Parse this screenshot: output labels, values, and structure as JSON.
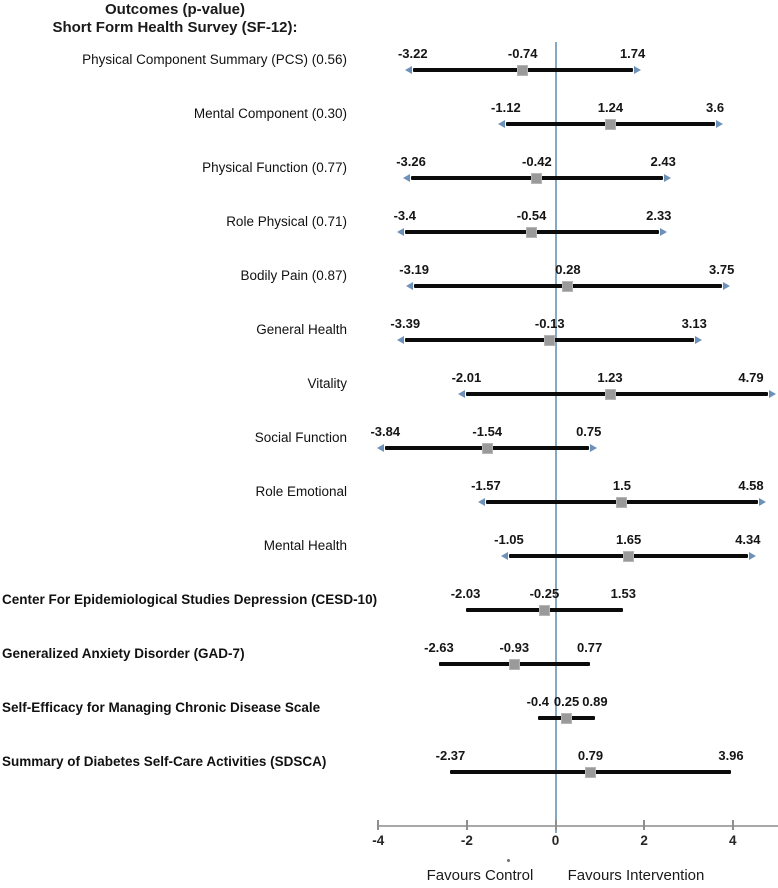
{
  "title": {
    "line1": "Outcomes (p-value)",
    "line2": "Short Form Health Survey (SF-12):"
  },
  "chart_data": {
    "type": "scatter",
    "subtype": "forest-plot-with-error-bars",
    "title": "Outcomes (p-value)",
    "subtitle": "Short Form Health Survey (SF-12):",
    "xlim": [
      -4.5,
      5.0
    ],
    "x_tick_values": [
      -4,
      -2,
      0,
      2,
      4
    ],
    "xlabel_ticks": [
      "-4",
      "-2",
      "0",
      "2",
      "4"
    ],
    "zero_reference_line": 0,
    "grid": false,
    "marker_shape": "gray-square",
    "footer": {
      "left": "Favours Control",
      "right": "Favours Intervention"
    },
    "rows": [
      {
        "label": "Physical Component Summary (PCS) (0.56)",
        "bold": false,
        "align": "right",
        "lower": "-3.22",
        "estimate": "-0.74",
        "upper": "1.74",
        "caps": true
      },
      {
        "label": "Mental Component (0.30)",
        "bold": false,
        "align": "right",
        "lower": "-1.12",
        "estimate": "1.24",
        "upper": "3.6",
        "caps": true
      },
      {
        "label": "Physical Function (0.77)",
        "bold": false,
        "align": "right",
        "lower": "-3.26",
        "estimate": "-0.42",
        "upper": "2.43",
        "caps": true
      },
      {
        "label": "Role Physical (0.71)",
        "bold": false,
        "align": "right",
        "lower": "-3.4",
        "estimate": "-0.54",
        "upper": "2.33",
        "caps": true
      },
      {
        "label": "Bodily Pain (0.87)",
        "bold": false,
        "align": "right",
        "lower": "-3.19",
        "estimate": "0.28",
        "upper": "3.75",
        "caps": true
      },
      {
        "label": "General Health",
        "bold": false,
        "align": "right",
        "lower": "-3.39",
        "estimate": "-0.13",
        "upper": "3.13",
        "caps": true
      },
      {
        "label": "Vitality",
        "bold": false,
        "align": "right",
        "lower": "-2.01",
        "estimate": "1.23",
        "upper": "4.79",
        "caps": true
      },
      {
        "label": "Social Function",
        "bold": false,
        "align": "right",
        "lower": "-3.84",
        "estimate": "-1.54",
        "upper": "0.75",
        "caps": true
      },
      {
        "label": "Role Emotional",
        "bold": false,
        "align": "right",
        "lower": "-1.57",
        "estimate": "1.5",
        "upper": "4.58",
        "caps": true
      },
      {
        "label": "Mental Health",
        "bold": false,
        "align": "right",
        "lower": "-1.05",
        "estimate": "1.65",
        "upper": "4.34",
        "caps": true
      },
      {
        "label": "Center For Epidemiological Studies Depression (CESD-10)",
        "bold": true,
        "align": "left",
        "lower": "-2.03",
        "estimate": "-0.25",
        "upper": "1.53",
        "caps": false
      },
      {
        "label": "Generalized Anxiety Disorder (GAD-7)",
        "bold": true,
        "align": "left",
        "lower": "-2.63",
        "estimate": "-0.93",
        "upper": "0.77",
        "caps": false
      },
      {
        "label": "Self-Efficacy for Managing Chronic Disease Scale",
        "bold": true,
        "align": "left",
        "lower": "-0.4",
        "estimate": "0.25",
        "upper": "0.89",
        "caps": false
      },
      {
        "label": "Summary of Diabetes Self-Care Activities (SDSCA)",
        "bold": true,
        "align": "left",
        "lower": "-2.37",
        "estimate": "0.79",
        "upper": "3.96",
        "caps": false
      }
    ]
  },
  "colors": {
    "ci_line": "#0b0b0b",
    "marker": "#9a9a9a",
    "zero_line": "#85a9c5",
    "arrow_caps": "#6d91b8",
    "axis_line": "#a8a8a8",
    "text": "#1a1a1a"
  }
}
